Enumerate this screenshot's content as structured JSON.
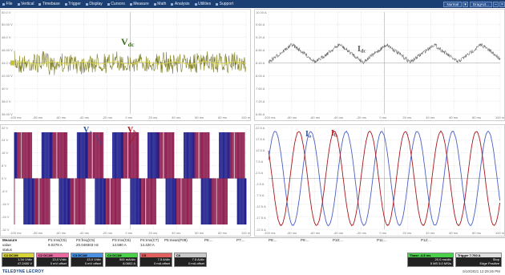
{
  "menu": [
    {
      "label": "File",
      "icon": "file-icon"
    },
    {
      "label": "Vertical",
      "icon": "vertical-icon"
    },
    {
      "label": "Timebase",
      "icon": "timebase-icon"
    },
    {
      "label": "Trigger",
      "icon": "trigger-icon"
    },
    {
      "label": "Display",
      "icon": "display-icon"
    },
    {
      "label": "Cursors",
      "icon": "cursors-icon"
    },
    {
      "label": "Measure",
      "icon": "measure-icon"
    },
    {
      "label": "Math",
      "icon": "math-icon"
    },
    {
      "label": "Analysis",
      "icon": "analysis-icon"
    },
    {
      "label": "Utilities",
      "icon": "utilities-icon"
    },
    {
      "label": "Support",
      "icon": "support-icon"
    }
  ],
  "menu_right": {
    "mode": "Normal",
    "zoom_mode": "DragAct..."
  },
  "panels": {
    "vdc": {
      "annotation": "V",
      "annotation_sub": "dc",
      "annotation_color": "#3a6a1a",
      "trace_color": "#7d7d1e",
      "yticks": [
        "52.0 V",
        "50.00 V",
        "48.0 V",
        "46.00 V",
        "44.0 V",
        "42.00 V",
        "40 V",
        "38.0 V",
        "36.00 V"
      ],
      "xticks": [
        "-100 ms",
        "-80 ms",
        "-60 ms",
        "-40 ms",
        "-20 ms",
        "0 ms",
        "20 ms",
        "40 ms",
        "60 ms",
        "80 ms",
        "100 ms"
      ]
    },
    "idc": {
      "annotation": "I",
      "annotation_sub": "dc",
      "annotation_color": "#555555",
      "trace_color": "#6e6e6e",
      "yticks": [
        "10.00 A",
        "9.60 A",
        "9.20 A",
        "8.80 A",
        "8.40 A",
        "8.00 A",
        "7.60 A",
        "7.20 A",
        "6.80 A"
      ],
      "xticks": [
        "-100 ms",
        "-80 ms",
        "-60 ms",
        "-40 ms",
        "-20 ms",
        "0 ms",
        "20 ms",
        "40 ms",
        "60 ms",
        "80 ms",
        "100 ms"
      ]
    },
    "vab": {
      "annotation_a": "V",
      "annotation_a_sub": "a",
      "annotation_a_color": "#2f4f9e",
      "annotation_b": "V",
      "annotation_b_sub": "b",
      "annotation_b_color": "#b0141a",
      "trace_a_color": "#1e1e8c",
      "trace_b_color": "#8c1a4c",
      "yticks": [
        "32 V",
        "24 V",
        "16 V",
        "8 V",
        "0 V",
        "-8 V",
        "-16 V",
        "-24 V",
        "-32 V"
      ],
      "xticks": [
        "-100 ms",
        "-80 ms",
        "-60 ms",
        "-40 ms",
        "-20 ms",
        "0 ms",
        "20 ms",
        "40 ms",
        "60 ms",
        "80 ms",
        "100 ms"
      ]
    },
    "iab": {
      "annotation_a": "I",
      "annotation_a_sub": "a",
      "annotation_a_color": "#2f4f9e",
      "annotation_b": "I",
      "annotation_b_sub": "b",
      "annotation_b_color": "#b0141a",
      "trace_a_color": "#4a5fc4",
      "trace_b_color": "#a8161c",
      "yticks": [
        "22.5 A",
        "17.5 A",
        "12.5 A",
        "7.5 A",
        "2.5 A",
        "-2.5 A",
        "-7.5 A",
        "-12.5 A",
        "-17.5 A",
        "-22.5 A"
      ],
      "xticks": [
        "-100 ms",
        "-80 ms",
        "-60 ms",
        "-40 ms",
        "-20 ms",
        "0 ms",
        "20 ms",
        "40 ms",
        "60 ms",
        "80 ms",
        "100 ms"
      ]
    }
  },
  "measure": {
    "row_labels": [
      "Measure",
      "value",
      "status"
    ],
    "columns": [
      {
        "name": "P1:rms(C5)",
        "value": "9.0278 A"
      },
      {
        "name": "P2:freq(C5)",
        "value": "20.049303 Hz"
      },
      {
        "name": "P3:rms(C6)",
        "value": "14.590 A"
      },
      {
        "name": "P4:rms(C7)",
        "value": "14.420 A"
      },
      {
        "name": "P5:mean(F08)",
        "value": ""
      },
      {
        "name": "P6:...",
        "value": ""
      },
      {
        "name": "P7:...",
        "value": ""
      },
      {
        "name": "P8:...",
        "value": ""
      },
      {
        "name": "P9:...",
        "value": ""
      },
      {
        "name": "P10:...",
        "value": ""
      },
      {
        "name": "P11:...",
        "value": ""
      },
      {
        "name": "P12:...",
        "value": ""
      }
    ]
  },
  "channels": [
    {
      "id": "C1",
      "head_color": "#d6d23a",
      "label": "DC1M",
      "l1": "1.34 V/div",
      "l2": "47.2400 V"
    },
    {
      "id": "C2",
      "head_color": "#e86aa0",
      "label": "DC1M",
      "l1": "13.0 V/div",
      "l2": "0 mV offset"
    },
    {
      "id": "C3",
      "head_color": "#4a90e0",
      "label": "DC1M",
      "l1": "13.0 V/div",
      "l2": "0 mV offset"
    },
    {
      "id": "C4",
      "head_color": "#4ad04a",
      "label": "DC1M",
      "l1": "500 mA/div",
      "l2": "8.0602 A"
    },
    {
      "id": "C5",
      "head_color": "#e06060",
      "label": "",
      "l1": "7.5 A/div",
      "l2": "0 mA offset"
    },
    {
      "id": "C6",
      "head_color": "#c9c9c9",
      "label": "",
      "l1": "7.5 A/div",
      "l2": "0 mA offset"
    }
  ],
  "timebase": {
    "head": "Tbase",
    "offset": "-4.8 ms",
    "tdiv": "20.0 ms/div",
    "sr": "5 MS",
    "samples": "5.0 MS/s"
  },
  "trigger": {
    "head": "Trigger",
    "mode": "Stop",
    "level": "7.760 A",
    "type": "Edge",
    "slope": "Positive"
  },
  "footer": {
    "logo": "TELEDYNE LECROY",
    "datetime": "6/10/2021 12:29:26 PM"
  }
}
